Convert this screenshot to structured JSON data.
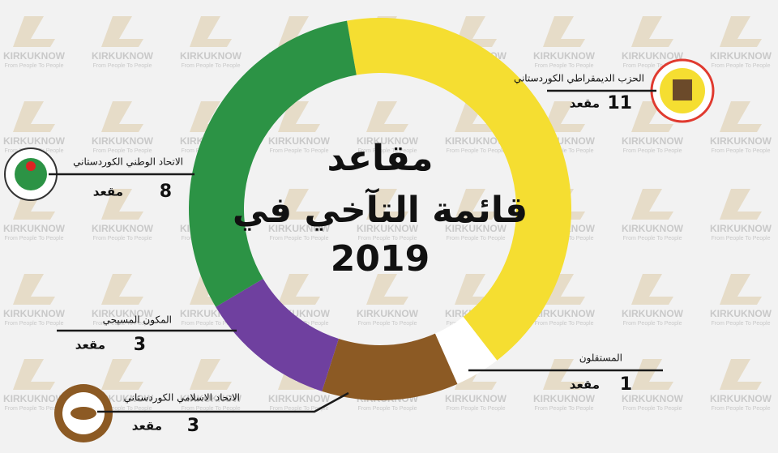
{
  "chart_data": {
    "type": "pie",
    "donut": true,
    "title_lines": [
      "مقاعد",
      "قائمة التآخي في",
      "2019"
    ],
    "categories": [
      "الحزب الديمقراطي الكوردستاني",
      "المستقلون",
      "الاتحاد الاسلامي الكوردستاني",
      "المكون المسيحي",
      "الاتحاد الوطني الكوردستاني"
    ],
    "values": [
      11,
      1,
      3,
      3,
      8
    ],
    "unit": "مقعد",
    "colors": [
      "#f5de31",
      "#ffffff",
      "#8c5a24",
      "#6f409f",
      "#2c9345"
    ],
    "watermark": {
      "name": "KIRKUKNOW",
      "tagline": "From People To People"
    }
  }
}
